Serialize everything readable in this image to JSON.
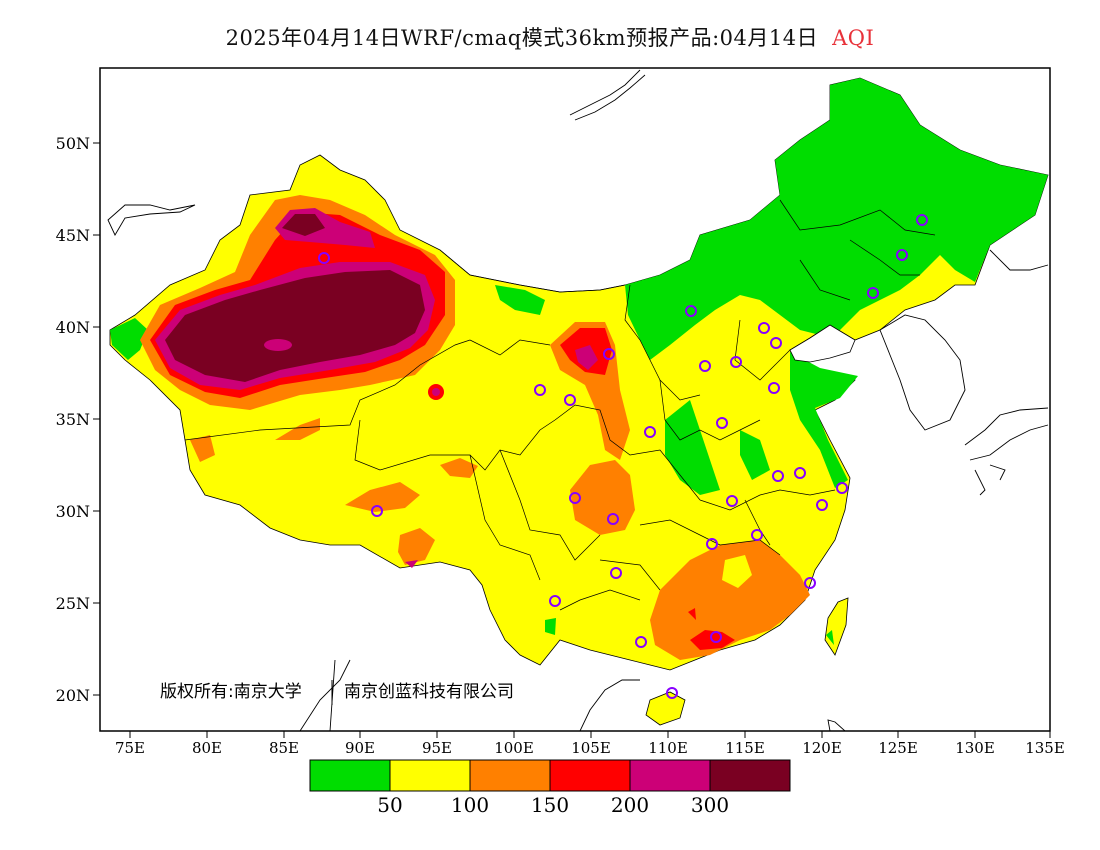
{
  "title": {
    "main": "2025年04月14日WRF/cmaq模式36km预报产品:04月14日",
    "variable": "AQI"
  },
  "axes": {
    "lat_labels": [
      "50N",
      "45N",
      "40N",
      "35N",
      "30N",
      "25N",
      "20N"
    ],
    "lon_labels": [
      "75E",
      "80E",
      "85E",
      "90E",
      "95E",
      "100E",
      "105E",
      "110E",
      "115E",
      "120E",
      "125E",
      "130E",
      "135E"
    ]
  },
  "copyright": {
    "left": "版权所有:南京大学",
    "right": "南京创蓝科技有限公司"
  },
  "legend": {
    "colors": [
      "#00dd00",
      "#ffff00",
      "#ff8000",
      "#ff0000",
      "#cc0077",
      "#7a0022"
    ],
    "labels": [
      "50",
      "100",
      "150",
      "200",
      "300"
    ]
  },
  "colors": {
    "station_marker": "#8800ff"
  }
}
